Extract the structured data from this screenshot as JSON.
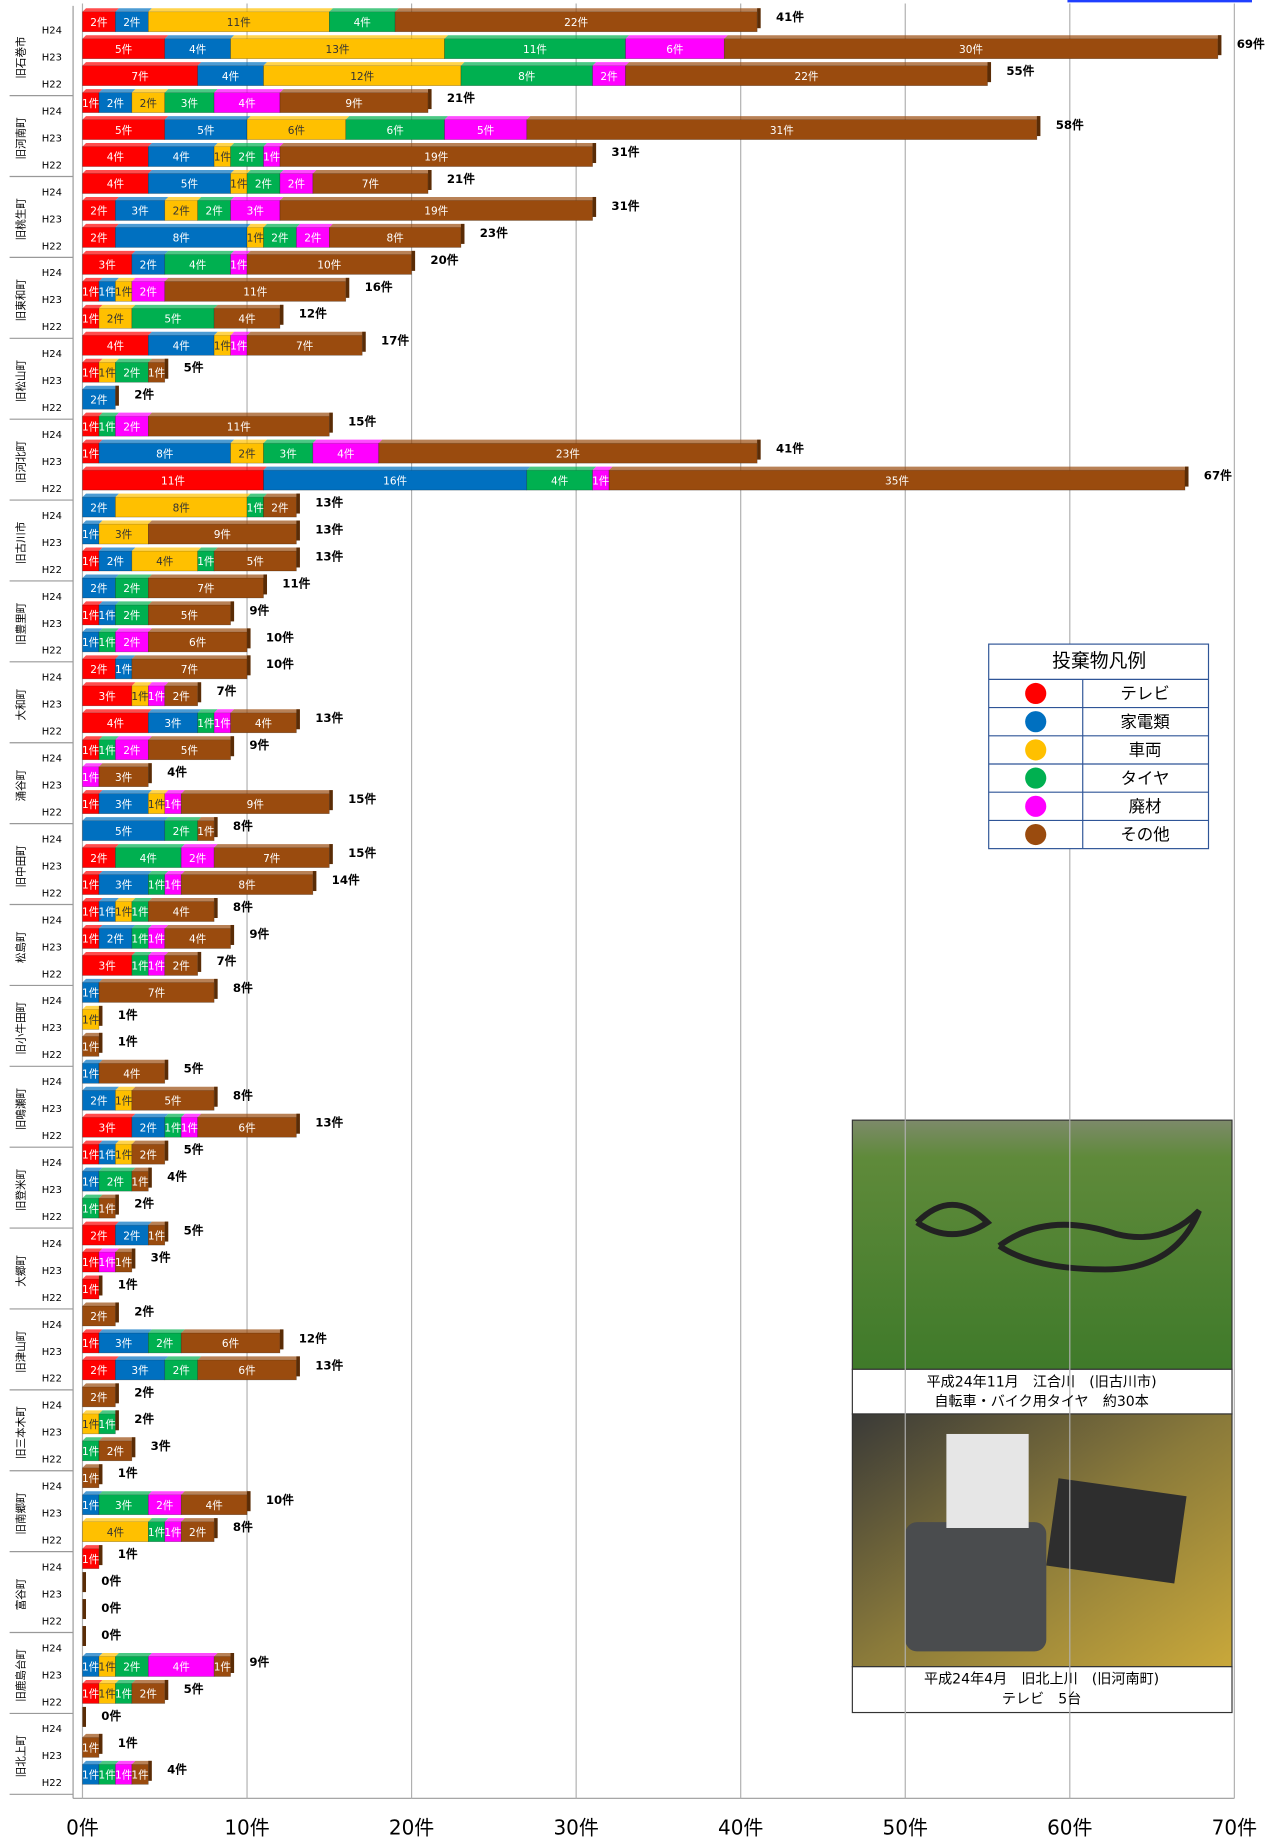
{
  "chart_data": {
    "type": "stacked-barh",
    "legend_title": "投棄物凡例",
    "groups": [
      "旧石巻市",
      "旧河南町",
      "旧桃生町",
      "旧東和町",
      "旧松山町",
      "旧河北町",
      "旧古川市",
      "旧豊里町",
      "大和町",
      "涌谷町",
      "旧中田町",
      "松島町",
      "旧小牛田町",
      "旧鳴瀬町",
      "旧登米町",
      "大郷町",
      "旧津山町",
      "旧三本木町",
      "旧南郷町",
      "富谷町",
      "旧鹿島台町",
      "旧北上町"
    ],
    "categories": [
      "H24",
      "H23",
      "H22",
      "H24",
      "H23",
      "H22",
      "H24",
      "H23",
      "H22",
      "H24",
      "H23",
      "H22",
      "H24",
      "H23",
      "H22",
      "H24",
      "H23",
      "H22",
      "H24",
      "H23",
      "H22",
      "H24",
      "H23",
      "H22",
      "H24",
      "H23",
      "H22",
      "H24",
      "H23",
      "H22",
      "H24",
      "H23",
      "H22",
      "H24",
      "H23",
      "H22",
      "H24",
      "H23",
      "H22",
      "H24",
      "H23",
      "H22",
      "H24",
      "H23",
      "H22",
      "H24",
      "H23",
      "H22",
      "H24",
      "H23",
      "H22",
      "H24",
      "H23",
      "H22",
      "H24",
      "H23",
      "H22",
      "H24",
      "H23",
      "H22",
      "H24",
      "H23",
      "H22",
      "H24",
      "H23",
      "H22"
    ],
    "series": [
      {
        "name": "テレビ",
        "color": "#ff0000",
        "values": [
          2,
          5,
          7,
          1,
          5,
          4,
          4,
          2,
          2,
          3,
          1,
          1,
          4,
          1,
          0,
          1,
          1,
          11,
          0,
          0,
          1,
          0,
          1,
          0,
          2,
          3,
          4,
          1,
          0,
          1,
          0,
          2,
          1,
          1,
          1,
          3,
          0,
          0,
          0,
          0,
          0,
          3,
          1,
          0,
          0,
          2,
          1,
          1,
          0,
          1,
          2,
          0,
          0,
          0,
          0,
          0,
          0,
          1,
          0,
          0,
          0,
          0,
          1,
          0,
          0,
          0
        ],
        "value_labels": [
          "2件",
          "5件",
          "7件",
          "1件",
          "5件",
          "4件",
          "4件",
          "2件",
          "2件",
          "3件",
          "1件",
          "1件",
          "4件",
          "1件",
          null,
          "1件",
          "1件",
          "11件",
          null,
          null,
          "1件",
          null,
          "1件",
          null,
          "2件",
          "3件",
          "4件",
          "1件",
          null,
          "1件",
          null,
          "2件",
          "1件",
          "1件",
          "1件",
          "3件",
          null,
          null,
          null,
          null,
          null,
          "3件",
          "1件",
          null,
          null,
          "2件",
          "1件",
          "1件",
          null,
          "1件",
          "2件",
          null,
          null,
          null,
          null,
          null,
          null,
          "1件",
          null,
          null,
          null,
          null,
          "1件",
          null,
          null,
          null
        ]
      },
      {
        "name": "家電類",
        "color": "#0070c0",
        "values": [
          2,
          4,
          4,
          2,
          5,
          4,
          5,
          3,
          8,
          2,
          1,
          0,
          4,
          0,
          2,
          0,
          8,
          16,
          2,
          1,
          2,
          2,
          1,
          1,
          1,
          0,
          3,
          0,
          0,
          3,
          5,
          0,
          3,
          1,
          2,
          0,
          1,
          0,
          0,
          1,
          2,
          2,
          1,
          1,
          0,
          2,
          0,
          0,
          0,
          3,
          3,
          0,
          0,
          0,
          0,
          1,
          0,
          0,
          0,
          0,
          0,
          1,
          0,
          0,
          0,
          1
        ],
        "value_labels": [
          "2件",
          "4件",
          "4件",
          "2件",
          "5件",
          "4件",
          "5件",
          "3件",
          "8件",
          "2件",
          "1件",
          null,
          "4件",
          null,
          "2件",
          null,
          "8件",
          "16件",
          "2件",
          "1件",
          "2件",
          "2件",
          "1件",
          "1件",
          "1件",
          null,
          "3件",
          null,
          null,
          "3件",
          "5件",
          null,
          "3件",
          "1件",
          "2件",
          null,
          "1件",
          null,
          null,
          "1件",
          "2件",
          "2件",
          "1件",
          "1件",
          null,
          "2件",
          null,
          null,
          null,
          "3件",
          "3件",
          null,
          null,
          null,
          null,
          "1件",
          null,
          null,
          null,
          null,
          null,
          "1件",
          null,
          null,
          null,
          "1件"
        ]
      },
      {
        "name": "車両",
        "color": "#ffc000",
        "values": [
          11,
          13,
          12,
          2,
          6,
          1,
          1,
          2,
          1,
          0,
          1,
          2,
          1,
          1,
          0,
          0,
          2,
          0,
          8,
          3,
          4,
          0,
          0,
          0,
          0,
          1,
          0,
          0,
          0,
          1,
          0,
          0,
          0,
          1,
          0,
          0,
          0,
          1,
          0,
          0,
          1,
          0,
          1,
          0,
          0,
          0,
          0,
          0,
          0,
          0,
          0,
          0,
          1,
          0,
          0,
          0,
          4,
          0,
          0,
          0,
          0,
          1,
          1,
          0,
          0,
          0
        ],
        "value_labels": [
          "11件",
          "13件",
          "12件",
          "2件",
          "6件",
          "1件",
          "1件",
          "2件",
          "1件",
          null,
          "1件",
          "2件",
          "1件",
          "1件",
          null,
          null,
          "2件",
          null,
          "8件",
          "3件",
          "4件",
          null,
          null,
          null,
          null,
          "1件",
          null,
          null,
          null,
          "1件",
          null,
          null,
          null,
          "1件",
          null,
          null,
          null,
          "1件",
          null,
          null,
          "1件",
          null,
          "1件",
          null,
          null,
          null,
          null,
          null,
          null,
          null,
          null,
          null,
          "1件",
          null,
          null,
          null,
          "4件",
          null,
          null,
          null,
          null,
          "1件",
          "1件",
          null,
          null,
          null
        ]
      },
      {
        "name": "タイヤ",
        "color": "#00b050",
        "values": [
          4,
          11,
          8,
          3,
          6,
          2,
          2,
          2,
          2,
          4,
          0,
          5,
          0,
          2,
          0,
          1,
          3,
          4,
          1,
          0,
          1,
          2,
          2,
          1,
          0,
          0,
          1,
          1,
          0,
          0,
          2,
          4,
          1,
          1,
          1,
          1,
          0,
          0,
          0,
          0,
          0,
          1,
          0,
          2,
          1,
          0,
          0,
          0,
          0,
          2,
          2,
          0,
          1,
          1,
          0,
          3,
          1,
          0,
          0,
          0,
          0,
          2,
          1,
          0,
          0,
          1
        ],
        "value_labels": [
          "4件",
          "11件",
          "8件",
          "3件",
          "6件",
          "2件",
          "2件",
          "2件",
          "2件",
          "4件",
          null,
          "5件",
          null,
          "2件",
          null,
          "1件",
          "3件",
          "4件",
          "1件",
          null,
          "1件",
          "2件",
          "2件",
          "1件",
          null,
          null,
          "1件",
          "1件",
          null,
          null,
          "2件",
          "4件",
          "1件",
          "1件",
          "1件",
          "1件",
          null,
          null,
          null,
          null,
          null,
          "1件",
          null,
          "2件",
          "1件",
          null,
          null,
          null,
          null,
          "2件",
          "2件",
          null,
          "1件",
          "1件",
          null,
          "3件",
          "1件",
          null,
          null,
          null,
          null,
          "2件",
          "1件",
          null,
          null,
          "1件"
        ]
      },
      {
        "name": "廃材",
        "color": "#ff00ff",
        "values": [
          0,
          6,
          2,
          4,
          5,
          1,
          2,
          3,
          2,
          1,
          2,
          0,
          1,
          0,
          0,
          2,
          4,
          1,
          0,
          0,
          0,
          0,
          0,
          2,
          0,
          1,
          1,
          2,
          1,
          1,
          0,
          2,
          1,
          0,
          1,
          1,
          0,
          0,
          0,
          0,
          0,
          1,
          0,
          0,
          0,
          0,
          1,
          0,
          0,
          0,
          0,
          0,
          0,
          0,
          0,
          2,
          1,
          0,
          0,
          0,
          0,
          4,
          0,
          0,
          0,
          1
        ],
        "value_labels": [
          null,
          "6件",
          "2件",
          "4件",
          "5件",
          "1件",
          "2件",
          "3件",
          "2件",
          "1件",
          "2件",
          null,
          "1件",
          null,
          null,
          "2件",
          "4件",
          "1件",
          null,
          null,
          null,
          null,
          null,
          "2件",
          null,
          "1件",
          "1件",
          "2件",
          "1件",
          "1件",
          null,
          "2件",
          "1件",
          null,
          "1件",
          "1件",
          null,
          null,
          null,
          null,
          null,
          "1件",
          null,
          null,
          null,
          null,
          "1件",
          null,
          null,
          null,
          null,
          null,
          null,
          null,
          null,
          "2件",
          "1件",
          null,
          null,
          null,
          null,
          "4件",
          null,
          null,
          null,
          "1件"
        ]
      },
      {
        "name": "その他",
        "color": "#9a4b0e",
        "values": [
          22,
          30,
          22,
          9,
          31,
          19,
          7,
          19,
          8,
          10,
          11,
          4,
          7,
          1,
          0,
          11,
          23,
          35,
          2,
          9,
          5,
          7,
          5,
          6,
          7,
          2,
          4,
          5,
          3,
          9,
          1,
          7,
          8,
          4,
          4,
          2,
          7,
          0,
          1,
          4,
          5,
          6,
          2,
          1,
          1,
          1,
          1,
          0,
          2,
          6,
          6,
          2,
          0,
          2,
          1,
          4,
          2,
          0,
          0,
          0,
          0,
          1,
          2,
          0,
          1,
          1
        ],
        "value_labels": [
          "22件",
          "30件",
          "22件",
          "9件",
          "31件",
          "19件",
          "7件",
          "19件",
          "8件",
          "10件",
          "11件",
          "4件",
          "7件",
          "1件",
          null,
          "11件",
          "23件",
          "35件",
          "2件",
          "9件",
          "5件",
          "7件",
          "5件",
          "6件",
          "7件",
          "2件",
          "4件",
          "5件",
          "3件",
          "9件",
          "1件",
          "7件",
          "8件",
          "4件",
          "4件",
          "2件",
          "7件",
          null,
          "1件",
          "4件",
          "5件",
          "6件",
          "2件",
          "1件",
          "1件",
          "1件",
          "1件",
          null,
          "2件",
          "6件",
          "6件",
          "2件",
          null,
          "2件",
          "1件",
          "4件",
          "2件",
          null,
          null,
          null,
          null,
          "1件",
          "2件",
          null,
          "1件",
          "1件"
        ]
      }
    ],
    "total_labels": [
      "41件",
      "69件",
      "55件",
      "21件",
      "58件",
      "31件",
      "21件",
      "31件",
      "23件",
      "20件",
      "16件",
      "12件",
      "17件",
      "5件",
      "2件",
      "15件",
      "41件",
      "67件",
      "13件",
      "13件",
      "13件",
      "11件",
      "9件",
      "10件",
      "10件",
      "7件",
      "13件",
      "9件",
      "4件",
      "15件",
      "8件",
      "15件",
      "14件",
      "8件",
      "9件",
      "7件",
      "8件",
      "1件",
      "1件",
      "5件",
      "8件",
      "13件",
      "5件",
      "4件",
      "2件",
      "5件",
      "3件",
      "1件",
      "2件",
      "12件",
      "13件",
      "2件",
      "2件",
      "3件",
      "1件",
      "10件",
      "8件",
      "1件",
      "0件",
      "0件",
      "0件",
      "9件",
      "5件",
      "0件",
      "1件",
      "4件"
    ],
    "xlim": [
      0,
      70
    ],
    "xticks": [
      {
        "value": 0,
        "label": "0件"
      },
      {
        "value": 10,
        "label": "10件"
      },
      {
        "value": 20,
        "label": "20件"
      },
      {
        "value": 30,
        "label": "30件"
      },
      {
        "value": 40,
        "label": "40件"
      },
      {
        "value": 50,
        "label": "50件"
      },
      {
        "value": 60,
        "label": "60件"
      },
      {
        "value": 70,
        "label": "70件"
      }
    ],
    "grid": true,
    "annotations": [
      {
        "lines": [
          "平成24年11月　江合川　(旧古川市)",
          "自転車・バイク用タイヤ　約30本"
        ]
      },
      {
        "lines": [
          "平成24年4月　旧北上川　(旧河南町)",
          "テレビ　5台"
        ]
      }
    ]
  }
}
